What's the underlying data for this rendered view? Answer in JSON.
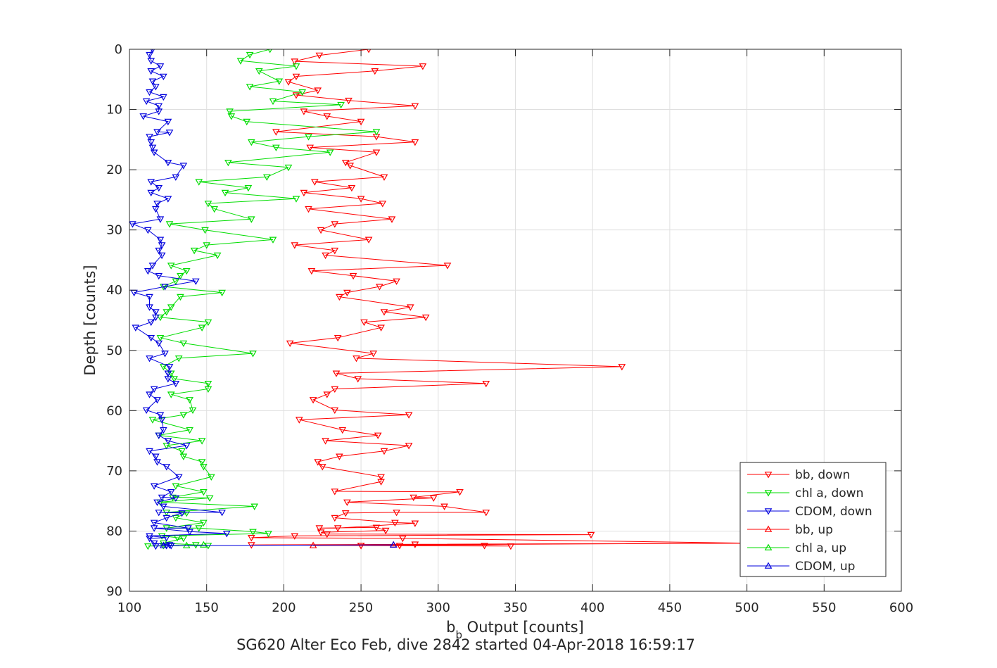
{
  "chart_data": {
    "type": "line",
    "title": "",
    "xlabel": "b",
    "xlabel_sub": "b",
    "xlabel_rest": " Output [counts]",
    "ylabel": "Depth [counts]",
    "caption": "SG620 Alter Eco Feb, dive 2842 started 04-Apr-2018 16:59:17",
    "xlim": [
      100,
      600
    ],
    "ylim": [
      0,
      90
    ],
    "y_reversed": true,
    "grid": true,
    "legend_position": "bottom-right",
    "xticks": [
      "100",
      "150",
      "200",
      "250",
      "300",
      "350",
      "400",
      "450",
      "500",
      "550",
      "600"
    ],
    "yticks": [
      "0",
      "10",
      "20",
      "30",
      "40",
      "50",
      "60",
      "70",
      "80",
      "90"
    ],
    "series": [
      {
        "name": "bb, down",
        "color": "#ff0000",
        "marker": "triangle-down",
        "points": [
          [
            255,
            0
          ],
          [
            223,
            1
          ],
          [
            207,
            2
          ],
          [
            290,
            2.8
          ],
          [
            259,
            3.6
          ],
          [
            208,
            4.5
          ],
          [
            203,
            5.4
          ],
          [
            222,
            6.8
          ],
          [
            208,
            7.6
          ],
          [
            242,
            8.5
          ],
          [
            285,
            9.4
          ],
          [
            213,
            10.3
          ],
          [
            228,
            11.1
          ],
          [
            250,
            12.0
          ],
          [
            195,
            13.7
          ],
          [
            260,
            14.5
          ],
          [
            285,
            15.4
          ],
          [
            217,
            16.3
          ],
          [
            260,
            17.1
          ],
          [
            240,
            18.8
          ],
          [
            243,
            19.3
          ],
          [
            265,
            21.2
          ],
          [
            220,
            22.0
          ],
          [
            244,
            23.0
          ],
          [
            213,
            23.8
          ],
          [
            250,
            24.8
          ],
          [
            264,
            25.6
          ],
          [
            216,
            26.5
          ],
          [
            270,
            28.2
          ],
          [
            233,
            29.0
          ],
          [
            224,
            30.0
          ],
          [
            255,
            31.6
          ],
          [
            207,
            32.5
          ],
          [
            233,
            33.4
          ],
          [
            227,
            34.2
          ],
          [
            306,
            35.9
          ],
          [
            218,
            36.8
          ],
          [
            245,
            37.6
          ],
          [
            273,
            38.5
          ],
          [
            262,
            39.4
          ],
          [
            241,
            40.4
          ],
          [
            236,
            41.1
          ],
          [
            282,
            42.8
          ],
          [
            265,
            43.6
          ],
          [
            292,
            44.5
          ],
          [
            252,
            45.3
          ],
          [
            263,
            46.2
          ],
          [
            235,
            47.9
          ],
          [
            204,
            48.8
          ],
          [
            258,
            50.5
          ],
          [
            247,
            51.3
          ],
          [
            419,
            52.7
          ],
          [
            234,
            53.8
          ],
          [
            248,
            54.7
          ],
          [
            331,
            55.5
          ],
          [
            233,
            56.4
          ],
          [
            228,
            57.3
          ],
          [
            219,
            58.2
          ],
          [
            233,
            59.9
          ],
          [
            281,
            60.7
          ],
          [
            210,
            61.5
          ],
          [
            238,
            63.2
          ],
          [
            261,
            64.1
          ],
          [
            227,
            65.0
          ],
          [
            281,
            65.8
          ],
          [
            265,
            66.7
          ],
          [
            236,
            67.6
          ],
          [
            222,
            68.5
          ],
          [
            225,
            69.3
          ],
          [
            263,
            71.0
          ],
          [
            263,
            71.8
          ],
          [
            233,
            73.4
          ],
          [
            314,
            73.5
          ],
          [
            284,
            74.4
          ],
          [
            297,
            74.5
          ],
          [
            241,
            75.2
          ],
          [
            304,
            75.9
          ],
          [
            331,
            76.9
          ],
          [
            273,
            76.9
          ],
          [
            240,
            77.0
          ],
          [
            233,
            77.8
          ],
          [
            272,
            78.6
          ],
          [
            285,
            78.7
          ],
          [
            235,
            79.5
          ],
          [
            223,
            79.5
          ],
          [
            260,
            79.4
          ],
          [
            266,
            79.9
          ],
          [
            224,
            80.2
          ],
          [
            228,
            80.5
          ],
          [
            399,
            80.6
          ],
          [
            207,
            80.8
          ],
          [
            179,
            81.1
          ],
          [
            277,
            81.2
          ],
          [
            500,
            82.0
          ],
          [
            285,
            82.2
          ],
          [
            179,
            82.3
          ],
          [
            250,
            82.4
          ],
          [
            275,
            82.4
          ],
          [
            330,
            82.4
          ],
          [
            347,
            82.5
          ],
          [
            250,
            82.4
          ]
        ]
      },
      {
        "name": "chl a, down",
        "color": "#00dd00",
        "marker": "triangle-down",
        "points": [
          [
            191,
            0
          ],
          [
            178,
            0.9
          ],
          [
            172,
            1.9
          ],
          [
            208,
            2.8
          ],
          [
            184,
            3.6
          ],
          [
            197,
            5.3
          ],
          [
            178,
            6.2
          ],
          [
            212,
            7.1
          ],
          [
            193,
            8.6
          ],
          [
            237,
            9.2
          ],
          [
            165,
            10.3
          ],
          [
            166,
            11.1
          ],
          [
            176,
            12.0
          ],
          [
            260,
            13.7
          ],
          [
            216,
            14.5
          ],
          [
            179,
            15.4
          ],
          [
            195,
            16.3
          ],
          [
            230,
            17.1
          ],
          [
            164,
            18.8
          ],
          [
            203,
            19.6
          ],
          [
            189,
            21.2
          ],
          [
            145,
            22.0
          ],
          [
            177,
            23.0
          ],
          [
            162,
            23.8
          ],
          [
            208,
            24.8
          ],
          [
            151,
            25.6
          ],
          [
            155,
            26.5
          ],
          [
            179,
            28.2
          ],
          [
            126,
            29.0
          ],
          [
            149,
            30.0
          ],
          [
            193,
            31.6
          ],
          [
            150,
            32.5
          ],
          [
            142,
            33.4
          ],
          [
            157,
            34.2
          ],
          [
            127,
            35.9
          ],
          [
            137,
            36.8
          ],
          [
            133,
            37.6
          ],
          [
            130,
            38.5
          ],
          [
            122,
            39.4
          ],
          [
            160,
            40.4
          ],
          [
            133,
            41.1
          ],
          [
            127,
            42.8
          ],
          [
            124,
            43.6
          ],
          [
            120,
            44.5
          ],
          [
            151,
            45.3
          ],
          [
            147,
            46.2
          ],
          [
            120,
            47.9
          ],
          [
            135,
            48.8
          ],
          [
            180,
            50.5
          ],
          [
            132,
            51.3
          ],
          [
            122,
            52.7
          ],
          [
            127,
            53.8
          ],
          [
            129,
            54.7
          ],
          [
            151,
            55.5
          ],
          [
            151,
            56.4
          ],
          [
            127,
            57.3
          ],
          [
            139,
            58.2
          ],
          [
            141,
            59.9
          ],
          [
            135,
            60.7
          ],
          [
            115,
            61.5
          ],
          [
            139,
            63.2
          ],
          [
            119,
            64.1
          ],
          [
            147,
            65.0
          ],
          [
            124,
            65.8
          ],
          [
            134,
            66.7
          ],
          [
            135,
            67.6
          ],
          [
            147,
            68.5
          ],
          [
            148,
            69.3
          ],
          [
            153,
            71.0
          ],
          [
            130,
            72.5
          ],
          [
            148,
            73.5
          ],
          [
            128,
            74.4
          ],
          [
            152,
            74.5
          ],
          [
            120,
            75.2
          ],
          [
            181,
            75.9
          ],
          [
            124,
            76.9
          ],
          [
            137,
            77.0
          ],
          [
            130,
            77.8
          ],
          [
            148,
            78.6
          ],
          [
            124,
            79.5
          ],
          [
            145,
            79.5
          ],
          [
            180,
            80.1
          ],
          [
            190,
            80.4
          ],
          [
            121,
            80.8
          ],
          [
            131,
            81.1
          ],
          [
            135,
            81.2
          ],
          [
            122,
            82.0
          ],
          [
            143,
            82.3
          ],
          [
            151,
            82.4
          ],
          [
            112,
            82.5
          ],
          [
            122,
            82.4
          ]
        ]
      },
      {
        "name": "CDOM, down",
        "color": "#0000dd",
        "marker": "triangle-down",
        "points": [
          [
            115,
            0
          ],
          [
            113,
            0.9
          ],
          [
            114,
            1.9
          ],
          [
            120,
            2.8
          ],
          [
            114,
            3.6
          ],
          [
            122,
            4.5
          ],
          [
            115,
            5.3
          ],
          [
            117,
            6.2
          ],
          [
            113,
            7.1
          ],
          [
            122,
            7.9
          ],
          [
            111,
            8.6
          ],
          [
            119,
            9.4
          ],
          [
            119,
            10.3
          ],
          [
            109,
            11.1
          ],
          [
            125,
            12.0
          ],
          [
            118,
            13.7
          ],
          [
            126,
            13.8
          ],
          [
            113,
            14.5
          ],
          [
            114,
            15.4
          ],
          [
            115,
            16.3
          ],
          [
            116,
            17.1
          ],
          [
            125,
            18.8
          ],
          [
            135,
            19.3
          ],
          [
            130,
            21.2
          ],
          [
            114,
            22.0
          ],
          [
            119,
            23.0
          ],
          [
            114,
            23.8
          ],
          [
            125,
            24.8
          ],
          [
            118,
            25.6
          ],
          [
            117,
            26.5
          ],
          [
            120,
            28.2
          ],
          [
            102,
            29.0
          ],
          [
            112,
            30.0
          ],
          [
            120,
            31.6
          ],
          [
            121,
            32.5
          ],
          [
            119,
            33.4
          ],
          [
            121,
            34.2
          ],
          [
            115,
            35.9
          ],
          [
            112,
            36.8
          ],
          [
            119,
            37.6
          ],
          [
            143,
            38.5
          ],
          [
            123,
            39.4
          ],
          [
            103,
            40.4
          ],
          [
            113,
            41.1
          ],
          [
            113,
            42.8
          ],
          [
            117,
            43.6
          ],
          [
            117,
            44.5
          ],
          [
            114,
            45.3
          ],
          [
            104,
            46.2
          ],
          [
            114,
            47.9
          ],
          [
            119,
            48.8
          ],
          [
            123,
            50.5
          ],
          [
            113,
            51.3
          ],
          [
            126,
            52.7
          ],
          [
            125,
            53.8
          ],
          [
            125,
            54.7
          ],
          [
            130,
            55.5
          ],
          [
            116,
            56.4
          ],
          [
            113,
            57.3
          ],
          [
            118,
            58.2
          ],
          [
            111,
            59.9
          ],
          [
            120,
            60.7
          ],
          [
            121,
            61.5
          ],
          [
            122,
            63.2
          ],
          [
            119,
            64.1
          ],
          [
            125,
            65.0
          ],
          [
            137,
            65.8
          ],
          [
            113,
            66.7
          ],
          [
            117,
            67.6
          ],
          [
            118,
            68.5
          ],
          [
            124,
            69.3
          ],
          [
            132,
            71.0
          ],
          [
            116,
            72.5
          ],
          [
            127,
            73.5
          ],
          [
            121,
            74.4
          ],
          [
            130,
            74.5
          ],
          [
            118,
            75.2
          ],
          [
            122,
            75.9
          ],
          [
            160,
            76.9
          ],
          [
            119,
            76.9
          ],
          [
            134,
            77.0
          ],
          [
            124,
            77.8
          ],
          [
            116,
            78.6
          ],
          [
            138,
            79.5
          ],
          [
            116,
            79.5
          ],
          [
            139,
            80.1
          ],
          [
            163,
            80.4
          ],
          [
            113,
            80.8
          ],
          [
            124,
            81.1
          ],
          [
            113,
            81.2
          ],
          [
            116,
            82.0
          ],
          [
            126,
            82.3
          ],
          [
            127,
            82.4
          ],
          [
            117,
            82.5
          ],
          [
            124,
            82.4
          ]
        ]
      },
      {
        "name": "bb, up",
        "color": "#ff0000",
        "marker": "triangle-up",
        "points": [
          [
            500,
            82.0
          ],
          [
            271,
            82.3
          ],
          [
            219,
            82.4
          ]
        ]
      },
      {
        "name": "chl a, up",
        "color": "#00dd00",
        "marker": "triangle-up",
        "points": [
          [
            148,
            82.3
          ],
          [
            137,
            82.4
          ]
        ]
      },
      {
        "name": "CDOM, up",
        "color": "#0000dd",
        "marker": "triangle-up",
        "points": [
          [
            271,
            82.3
          ],
          [
            122,
            82.4
          ]
        ]
      }
    ]
  }
}
